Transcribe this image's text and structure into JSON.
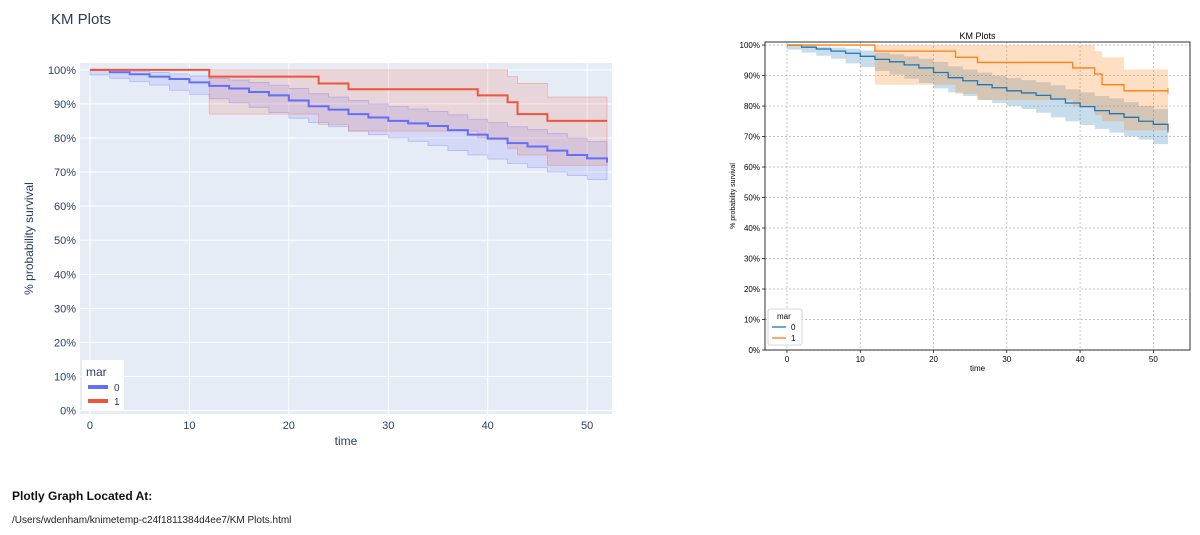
{
  "page": {
    "title": "KM Plots",
    "footer_heading": "Plotly Graph Located At:",
    "footer_path": "/Users/wdenham/knimetemp-c24f1811384d4ee7/KM Plots.html"
  },
  "chart_data": [
    {
      "type": "line",
      "title": "",
      "xlabel": "time",
      "ylabel": "% probability survival",
      "xlim": [
        -1,
        52.5
      ],
      "ylim": [
        -1,
        102
      ],
      "xticks": [
        0,
        10,
        20,
        30,
        40,
        50
      ],
      "xtick_labels": [
        "0",
        "10",
        "20",
        "30",
        "40",
        "50"
      ],
      "yticks": [
        0,
        10,
        20,
        30,
        40,
        50,
        60,
        70,
        80,
        90,
        100
      ],
      "ytick_labels": [
        "0%",
        "10%",
        "20%",
        "30%",
        "40%",
        "50%",
        "60%",
        "70%",
        "80%",
        "90%",
        "100%"
      ],
      "grid": true,
      "legend": {
        "title": "mar",
        "position": "bottom-left"
      },
      "series": [
        {
          "name": "0",
          "color": "#636efa",
          "band_color": "#636efa",
          "x": [
            0,
            2,
            4,
            6,
            8,
            10,
            12,
            14,
            16,
            18,
            20,
            22,
            24,
            26,
            28,
            30,
            32,
            34,
            36,
            38,
            40,
            42,
            44,
            46,
            48,
            50,
            52
          ],
          "y": [
            100,
            99.3,
            98.7,
            98,
            97.3,
            96.3,
            95.3,
            94.5,
            93.5,
            92.5,
            91,
            89.3,
            88.3,
            87,
            86,
            85,
            84.3,
            83.5,
            82.3,
            81,
            79.8,
            78.5,
            77.5,
            76.3,
            75,
            74,
            72.8
          ],
          "lower": [
            100,
            98.5,
            97.5,
            96.5,
            95.5,
            94,
            92.8,
            91.5,
            90.3,
            89,
            87.5,
            85.8,
            84.5,
            83.3,
            82,
            81,
            80,
            79,
            77.8,
            76.3,
            75,
            73.8,
            72.5,
            71.3,
            70,
            69,
            67.8
          ],
          "upper": [
            100,
            99.8,
            99.5,
            99.2,
            98.8,
            98.2,
            97.5,
            97,
            96.3,
            95.5,
            94.5,
            93,
            92,
            91,
            90,
            89.2,
            88.5,
            87.8,
            86.8,
            85.5,
            84.5,
            83.3,
            82.5,
            81.3,
            80,
            79,
            77.8
          ]
        },
        {
          "name": "1",
          "color": "#ef553b",
          "band_color": "#ef553b",
          "x": [
            0,
            12,
            12,
            23,
            23,
            26,
            26,
            39,
            39,
            42,
            42,
            43,
            43,
            46,
            46,
            52
          ],
          "y": [
            100,
            100,
            98,
            98,
            96,
            96,
            94.3,
            94.3,
            92.5,
            92.5,
            90.5,
            90.5,
            87,
            87,
            85,
            85
          ],
          "lower": [
            100,
            100,
            87,
            87,
            84,
            84,
            82,
            82,
            80,
            80,
            77,
            77,
            75,
            75,
            72,
            72
          ],
          "upper": [
            100,
            100,
            100,
            100,
            100,
            100,
            100,
            100,
            100,
            100,
            98,
            98,
            96,
            96,
            92,
            92
          ]
        }
      ]
    },
    {
      "type": "line",
      "title": "KM Plots",
      "xlabel": "time",
      "ylabel": "% probability survival",
      "xlim": [
        -3,
        55
      ],
      "ylim": [
        0,
        101
      ],
      "xticks": [
        0,
        10,
        20,
        30,
        40,
        50
      ],
      "xtick_labels": [
        "0",
        "10",
        "20",
        "30",
        "40",
        "50"
      ],
      "yticks": [
        0,
        10,
        20,
        30,
        40,
        50,
        60,
        70,
        80,
        90,
        100
      ],
      "ytick_labels": [
        "0%",
        "10%",
        "20%",
        "30%",
        "40%",
        "50%",
        "60%",
        "70%",
        "80%",
        "90%",
        "100%"
      ],
      "grid": true,
      "legend": {
        "title": "mar",
        "position": "bottom-left"
      },
      "series": [
        {
          "name": "0",
          "color": "#1f77b4",
          "band_color": "#1f77b4",
          "x": [
            0,
            2,
            4,
            6,
            8,
            10,
            12,
            14,
            16,
            18,
            20,
            22,
            24,
            26,
            28,
            30,
            32,
            34,
            36,
            38,
            40,
            42,
            44,
            46,
            48,
            50,
            52
          ],
          "y": [
            100,
            99.3,
            98.7,
            98,
            97.3,
            96.3,
            95.3,
            94.5,
            93.5,
            92.5,
            91,
            89.3,
            88.3,
            87,
            86,
            85,
            84.3,
            83.5,
            82.3,
            81,
            79.8,
            78.5,
            77.5,
            76.3,
            75,
            74,
            72.3
          ],
          "lower": [
            100,
            98.5,
            97.5,
            96.5,
            95.5,
            94,
            92.8,
            91.5,
            90.3,
            89,
            87.5,
            85.8,
            84.5,
            83.3,
            82,
            81,
            80,
            79,
            77.8,
            76.3,
            75,
            73.8,
            72.5,
            71.3,
            70,
            69,
            67.5
          ],
          "upper": [
            100,
            99.8,
            99.5,
            99.2,
            98.8,
            98.2,
            97.5,
            97,
            96.3,
            95.5,
            94.5,
            93,
            92,
            91,
            90,
            89.2,
            88.5,
            87.8,
            86.8,
            85.5,
            84.5,
            83.3,
            82.5,
            81.3,
            80,
            79,
            77.5
          ]
        },
        {
          "name": "1",
          "color": "#ff7f0e",
          "band_color": "#ff7f0e",
          "x": [
            0,
            12,
            12,
            23,
            23,
            26,
            26,
            39,
            39,
            42,
            42,
            43,
            43,
            46,
            46,
            52
          ],
          "y": [
            100,
            100,
            98,
            98,
            96,
            96,
            94.3,
            94.3,
            92.5,
            92.5,
            90.5,
            90.5,
            87,
            87,
            85,
            85
          ],
          "lower": [
            100,
            100,
            87,
            87,
            84,
            84,
            82,
            82,
            80,
            80,
            77,
            77,
            75,
            75,
            72,
            72
          ],
          "upper": [
            100,
            100,
            100,
            100,
            100,
            100,
            100,
            100,
            100,
            100,
            98,
            98,
            96,
            96,
            92,
            92
          ]
        }
      ]
    }
  ]
}
